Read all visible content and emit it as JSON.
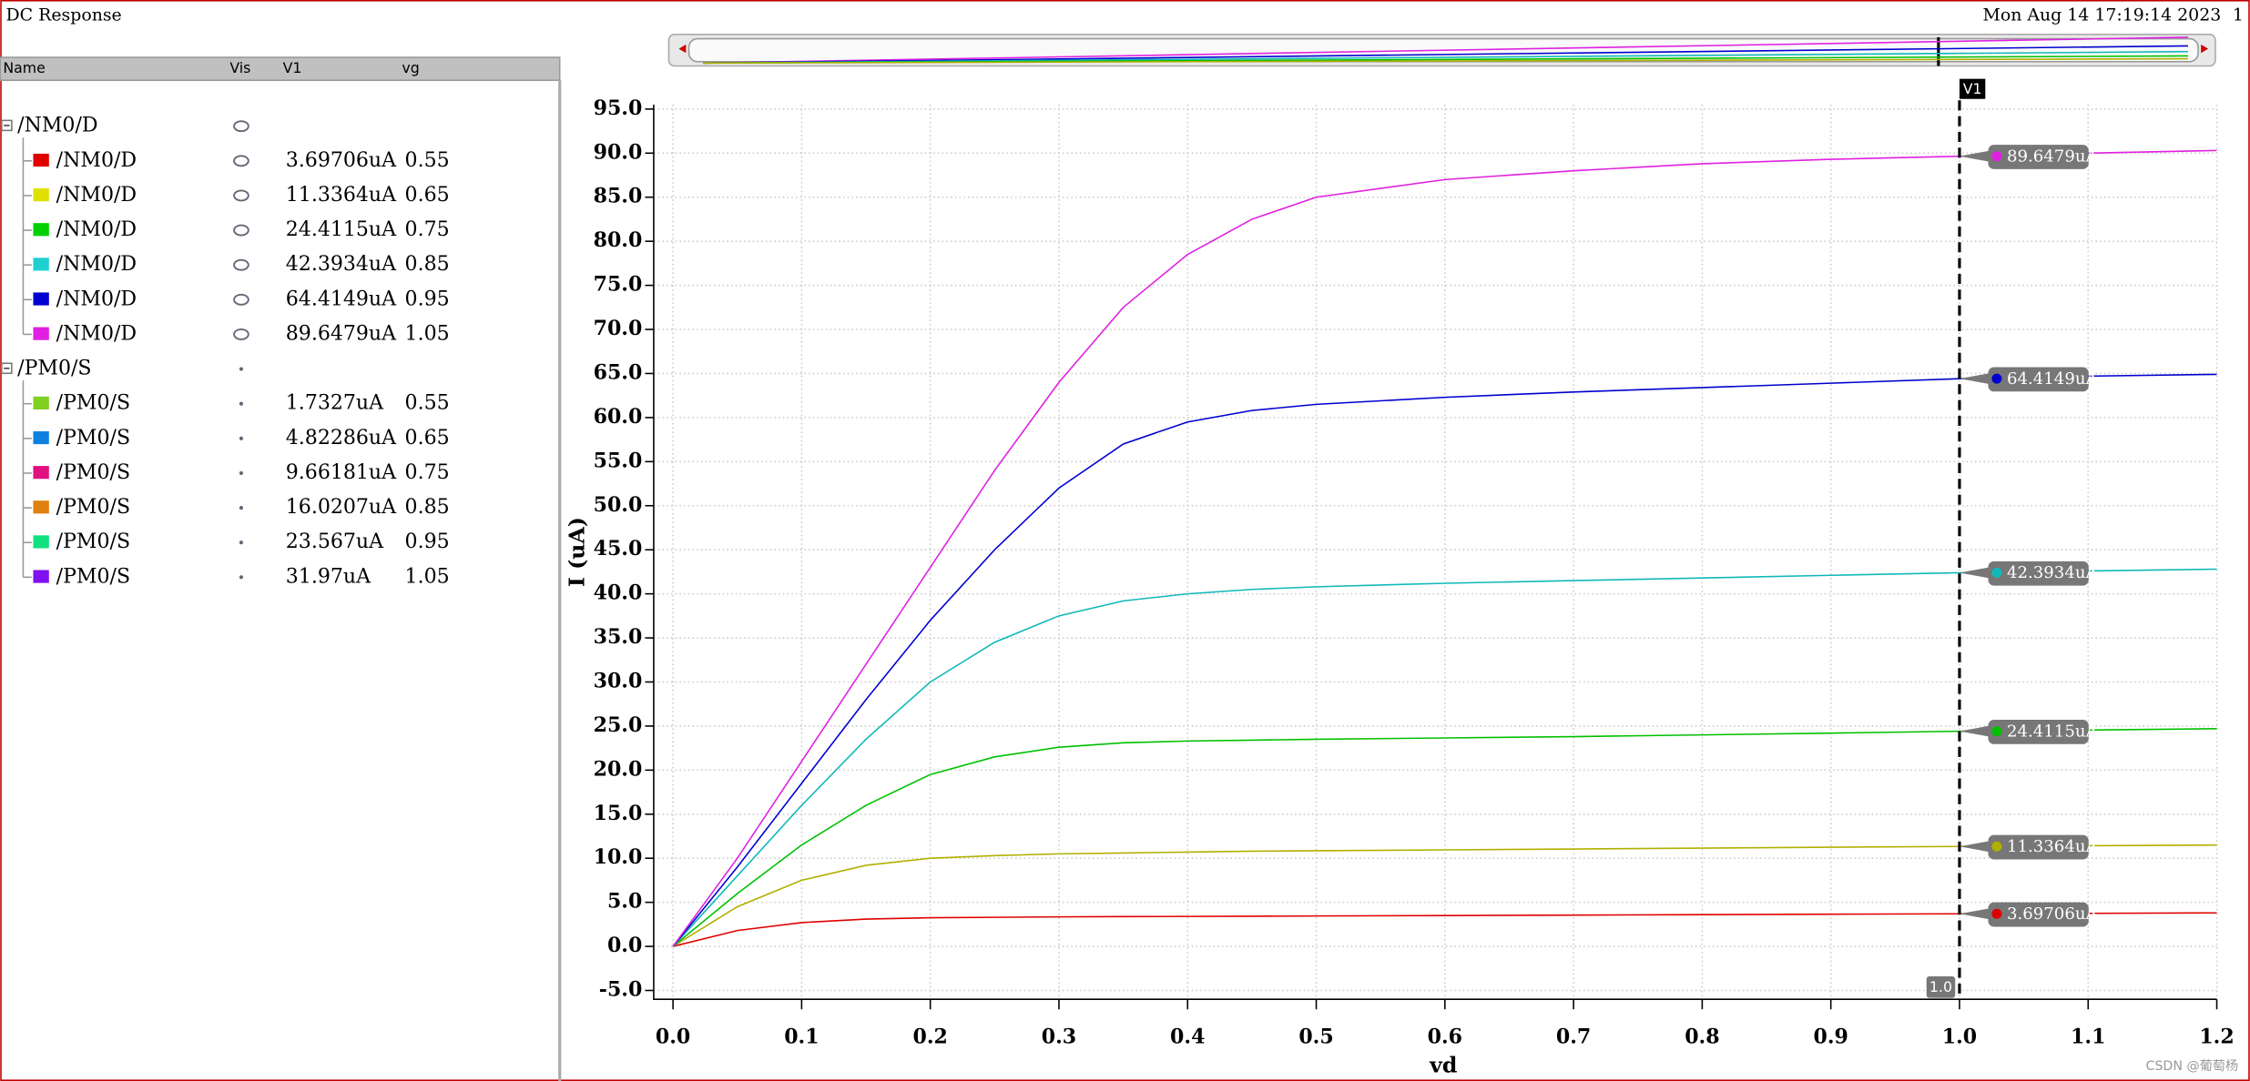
{
  "header": {
    "title": "DC Response",
    "date": "Mon Aug 14 17:19:14 2023",
    "page": "1",
    "watermark": "CSDN @葡萄杨"
  },
  "table": {
    "columns": [
      "Name",
      "Vis",
      "V1",
      "vg"
    ],
    "groups": [
      {
        "name": "/NM0/D",
        "visible": true,
        "rows": [
          {
            "name": "/NM0/D",
            "color": "#e00000",
            "v1": "3.69706uA",
            "vg": "0.55"
          },
          {
            "name": "/NM0/D",
            "color": "#e0e000",
            "v1": "11.3364uA",
            "vg": "0.65"
          },
          {
            "name": "/NM0/D",
            "color": "#00d000",
            "v1": "24.4115uA",
            "vg": "0.75"
          },
          {
            "name": "/NM0/D",
            "color": "#20d0d0",
            "v1": "42.3934uA",
            "vg": "0.85"
          },
          {
            "name": "/NM0/D",
            "color": "#0000d0",
            "v1": "64.4149uA",
            "vg": "0.95"
          },
          {
            "name": "/NM0/D",
            "color": "#e020e0",
            "v1": "89.6479uA",
            "vg": "1.05"
          }
        ]
      },
      {
        "name": "/PM0/S",
        "visible": false,
        "rows": [
          {
            "name": "/PM0/S",
            "color": "#80d020",
            "v1": "1.7327uA",
            "vg": "0.55"
          },
          {
            "name": "/PM0/S",
            "color": "#1080e0",
            "v1": "4.82286uA",
            "vg": "0.65"
          },
          {
            "name": "/PM0/S",
            "color": "#e01080",
            "v1": "9.66181uA",
            "vg": "0.75"
          },
          {
            "name": "/PM0/S",
            "color": "#e08010",
            "v1": "16.0207uA",
            "vg": "0.85"
          },
          {
            "name": "/PM0/S",
            "color": "#10e080",
            "v1": "23.567uA",
            "vg": "0.95"
          },
          {
            "name": "/PM0/S",
            "color": "#8010f0",
            "v1": "31.97uA",
            "vg": "1.05"
          }
        ]
      }
    ]
  },
  "chart_data": {
    "type": "line",
    "xlabel": "vd",
    "ylabel": "I (uA)",
    "grid": true,
    "x": [
      0,
      0.05,
      0.1,
      0.15,
      0.2,
      0.25,
      0.3,
      0.35,
      0.4,
      0.45,
      0.5,
      0.6,
      0.7,
      0.8,
      0.9,
      1.0,
      1.1,
      1.2
    ],
    "series": [
      {
        "color": "#e00000",
        "values": [
          0,
          1.8,
          2.7,
          3.1,
          3.25,
          3.3,
          3.35,
          3.38,
          3.4,
          3.42,
          3.45,
          3.5,
          3.55,
          3.6,
          3.65,
          3.7,
          3.75,
          3.8
        ]
      },
      {
        "color": "#b0b000",
        "values": [
          0,
          4.5,
          7.5,
          9.2,
          10.0,
          10.3,
          10.5,
          10.6,
          10.7,
          10.8,
          10.85,
          10.95,
          11.05,
          11.15,
          11.25,
          11.34,
          11.42,
          11.5
        ]
      },
      {
        "color": "#00c000",
        "values": [
          0,
          6,
          11.5,
          16,
          19.5,
          21.5,
          22.6,
          23.1,
          23.3,
          23.4,
          23.5,
          23.65,
          23.8,
          24.0,
          24.2,
          24.41,
          24.55,
          24.7
        ]
      },
      {
        "color": "#10b8b8",
        "values": [
          0,
          8,
          16,
          23.5,
          30,
          34.5,
          37.5,
          39.2,
          40.0,
          40.5,
          40.8,
          41.2,
          41.5,
          41.8,
          42.1,
          42.39,
          42.6,
          42.8
        ]
      },
      {
        "color": "#0000d0",
        "values": [
          0,
          9,
          18.5,
          28,
          37,
          45,
          52,
          57,
          59.5,
          60.8,
          61.5,
          62.3,
          62.9,
          63.4,
          63.9,
          64.41,
          64.7,
          64.9
        ]
      },
      {
        "color": "#e020e0",
        "values": [
          0,
          10,
          21,
          32,
          43,
          54,
          64,
          72.5,
          78.5,
          82.5,
          85,
          87,
          88,
          88.8,
          89.3,
          89.65,
          90.0,
          90.3
        ]
      }
    ],
    "xlim": [
      -0.015,
      1.2
    ],
    "ylim": [
      -6,
      95.5
    ],
    "xticks": [
      {
        "value": 0,
        "label": "0.0"
      },
      {
        "value": 0.1,
        "label": "0.1"
      },
      {
        "value": 0.2,
        "label": "0.2"
      },
      {
        "value": 0.3,
        "label": "0.3"
      },
      {
        "value": 0.4,
        "label": "0.4"
      },
      {
        "value": 0.5,
        "label": "0.5"
      },
      {
        "value": 0.6,
        "label": "0.6"
      },
      {
        "value": 0.7,
        "label": "0.7"
      },
      {
        "value": 0.8,
        "label": "0.8"
      },
      {
        "value": 0.9,
        "label": "0.9"
      },
      {
        "value": 1,
        "label": "1.0"
      },
      {
        "value": 1.1,
        "label": "1.1"
      },
      {
        "value": 1.2,
        "label": "1.2"
      }
    ],
    "yticks": [
      {
        "value": -5,
        "label": "-5.0"
      },
      {
        "value": 0,
        "label": "0.0"
      },
      {
        "value": 5,
        "label": "5.0"
      },
      {
        "value": 10,
        "label": "10.0"
      },
      {
        "value": 15,
        "label": "15.0"
      },
      {
        "value": 20,
        "label": "20.0"
      },
      {
        "value": 25,
        "label": "25.0"
      },
      {
        "value": 30,
        "label": "30.0"
      },
      {
        "value": 35,
        "label": "35.0"
      },
      {
        "value": 40,
        "label": "40.0"
      },
      {
        "value": 45,
        "label": "45.0"
      },
      {
        "value": 50,
        "label": "50.0"
      },
      {
        "value": 55,
        "label": "55.0"
      },
      {
        "value": 60,
        "label": "60.0"
      },
      {
        "value": 65,
        "label": "65.0"
      },
      {
        "value": 70,
        "label": "70.0"
      },
      {
        "value": 75,
        "label": "75.0"
      },
      {
        "value": 80,
        "label": "80.0"
      },
      {
        "value": 85,
        "label": "85.0"
      },
      {
        "value": 90,
        "label": "90.0"
      },
      {
        "value": 95,
        "label": "95.0"
      }
    ],
    "cursor": {
      "name": "V1",
      "x": {
        "value": 1.0,
        "label": "1.0"
      },
      "readouts": [
        {
          "value": 3.69706,
          "label": "3.69706uA"
        },
        {
          "value": 11.3364,
          "label": "11.3364uA"
        },
        {
          "value": 24.4115,
          "label": "24.4115uA"
        },
        {
          "value": 42.3934,
          "label": "42.3934uA"
        },
        {
          "value": 64.4149,
          "label": "64.4149uA"
        },
        {
          "value": 89.6479,
          "label": "89.6479uA"
        }
      ]
    }
  }
}
